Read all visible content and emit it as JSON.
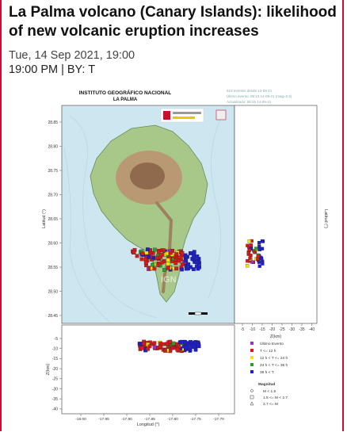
{
  "article": {
    "title": "La Palma volcano (Canary Islands): likelihood of new volcanic eruption increases",
    "date": "Tue, 14 Sep 2021, 19:00",
    "byline": "19:00 PM | BY: T"
  },
  "figure": {
    "institute_line1": "INSTITUTO GEOGRÁFICO NACIONAL",
    "institute_line2": "LA PALMA",
    "info_lines": [
      "523 eventos desde 13-09-21",
      "Último evento: 06:13 14-09-21 (mag=0.5)",
      "Actualizado: 06:26 14-09-21"
    ],
    "lat_axis_label": "Latitud (°)",
    "lat_ticks": [
      "28.85",
      "28.80",
      "28.75",
      "28.70",
      "28.65",
      "28.60",
      "28.55",
      "28.50",
      "28.45"
    ],
    "z_ticks_right": [
      "-5",
      "-10",
      "-15",
      "-20",
      "-25",
      "-30",
      "-35",
      "-40"
    ],
    "z_axis_label_right": "Z(km)",
    "lat_axis_label_right": "Latitud (°)",
    "z_ticks_bottom": [
      "-5",
      "-10",
      "-15",
      "-20",
      "-25",
      "-30",
      "-35",
      "-40"
    ],
    "z_axis_label_bottom": "Z(km)",
    "lon_ticks": [
      "-18.00",
      "-17.95",
      "-17.90",
      "-17.85",
      "-17.80",
      "-17.75",
      "-17.70"
    ],
    "lon_axis_label": "Longitud (°)",
    "map_watermark": "IGN",
    "legend": {
      "items": [
        {
          "label": "Último Evento",
          "color": "#9b30d0"
        },
        {
          "label": "T <= 12 h",
          "color": "#d7191c"
        },
        {
          "label": "12 h < T <= 24 h",
          "color": "#f2e600"
        },
        {
          "label": "24 h < T <= 36 h",
          "color": "#2ca02c"
        },
        {
          "label": "36 h < T",
          "color": "#1f1fd0"
        }
      ],
      "magnitude_title": "Magnitud",
      "magnitude_items": [
        {
          "label": "M < 1.5",
          "icon": "circle"
        },
        {
          "label": "1.5 <= M < 2.7",
          "icon": "square"
        },
        {
          "label": "2.7 <= M",
          "icon": "triangle"
        }
      ]
    }
  },
  "colors": {
    "accent_border": "#c8102e",
    "sea": "#cde6f0",
    "island_low": "#a8c88a",
    "island_high": "#b99874"
  }
}
